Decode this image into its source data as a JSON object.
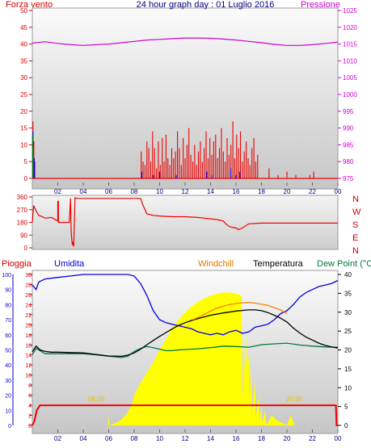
{
  "colors": {
    "panel_top": "#fafafa",
    "panel_bottom": "#c8c8c8",
    "axis_red": "#d40000",
    "axis_magenta": "#cc00cc",
    "axis_navy": "#000080",
    "axis_blue": "#0000cc",
    "wind_red": "#ee0000",
    "wind_blue": "#0000ff",
    "wind_green": "#008000",
    "pressure_line": "#cc00cc",
    "rain_line": "#ee0000",
    "humidity_line": "#0000dd",
    "windchill_line": "#ff8000",
    "temperature_line": "#000000",
    "dewpoint_line": "#007a3d",
    "solar_fill": "#ffff00",
    "windchill_label": "#e07800",
    "dewpoint_label": "#007a3d"
  },
  "chart_data": [
    {
      "type": "bar",
      "title": "24 hour graph day : 01 Luglio 2016",
      "ylabel_left": "Forza vento",
      "ylabel_right": "Pressione",
      "x_tick_labels": [
        "02",
        "04",
        "06",
        "08",
        "10",
        "12",
        "14",
        "16",
        "18",
        "20",
        "22",
        "00"
      ],
      "x_range_hours": [
        0,
        24
      ],
      "y_left_ticks": [
        0,
        5,
        10,
        15,
        20,
        25,
        30,
        35,
        40,
        45,
        50
      ],
      "y_left_range": [
        0,
        50
      ],
      "y_right_ticks": [
        975,
        980,
        985,
        990,
        995,
        1000,
        1005,
        1010,
        1015,
        1020,
        1025
      ],
      "y_right_range": [
        975,
        1025
      ],
      "grid": false,
      "series": [
        {
          "name": "Pressione",
          "kind": "line",
          "axis": "right",
          "x": [
            0,
            1,
            2,
            3,
            4,
            5,
            6,
            7,
            8,
            9,
            10,
            11,
            12,
            13,
            14,
            15,
            16,
            17,
            18,
            19,
            20,
            21,
            22,
            23,
            24
          ],
          "values": [
            1015.3,
            1015.7,
            1015.2,
            1014.8,
            1014.6,
            1014.8,
            1015.0,
            1015.4,
            1015.8,
            1016.2,
            1016.4,
            1016.6,
            1016.8,
            1016.8,
            1016.7,
            1016.5,
            1016.2,
            1015.8,
            1015.4,
            1014.9,
            1014.6,
            1014.6,
            1014.8,
            1015.2,
            1015.6
          ]
        },
        {
          "kind": "bars",
          "axis": "left",
          "x": [
            0.05,
            0.12,
            0.2,
            8.55,
            8.7,
            8.85,
            9.0,
            9.15,
            9.3,
            9.45,
            9.6,
            9.75,
            9.9,
            10.05,
            10.2,
            10.35,
            10.5,
            10.65,
            10.8,
            10.95,
            11.1,
            11.25,
            11.4,
            11.55,
            11.7,
            11.85,
            12.0,
            12.15,
            12.3,
            12.45,
            12.6,
            12.75,
            12.9,
            13.05,
            13.2,
            13.35,
            13.5,
            13.65,
            13.8,
            13.95,
            14.1,
            14.25,
            14.4,
            14.55,
            14.7,
            14.85,
            15.0,
            15.15,
            15.3,
            15.45,
            15.6,
            15.75,
            15.9,
            16.05,
            16.2,
            16.35,
            16.5,
            16.65,
            16.8,
            16.95,
            17.1,
            17.25,
            17.4,
            17.55,
            17.7,
            18.6,
            19.3,
            20.0,
            20.7,
            21.8,
            22.1
          ],
          "values": [
            17,
            11,
            5,
            8,
            5,
            4,
            11,
            9,
            5,
            14,
            9,
            3,
            11,
            4,
            12,
            5,
            13,
            6,
            4,
            9,
            6,
            8,
            14,
            9,
            4,
            12,
            6,
            10,
            15,
            7,
            5,
            10,
            4,
            8,
            11,
            5,
            9,
            14,
            6,
            12,
            7,
            11,
            13,
            6,
            9,
            15,
            8,
            5,
            12,
            7,
            10,
            17,
            6,
            13,
            9,
            14,
            5,
            8,
            11,
            6,
            4,
            9,
            12,
            5,
            7,
            3,
            1,
            2,
            1,
            1,
            2
          ]
        },
        {
          "kind": "bars",
          "axis": "left",
          "x": [
            0.05,
            0.15,
            8.6,
            9.5,
            10.0,
            11.3,
            13.7,
            14.1,
            15.6,
            16.0,
            16.3
          ],
          "values": [
            14,
            6,
            2,
            1,
            2,
            1,
            2,
            1,
            3,
            1,
            2
          ]
        },
        {
          "kind": "bars",
          "axis": "left",
          "x": [
            0.02,
            0.08
          ],
          "values": [
            13,
            9
          ]
        }
      ]
    },
    {
      "type": "line",
      "ylabel_right_letters": [
        "N",
        "W",
        "S",
        "E",
        "N"
      ],
      "y_left_ticks": [
        0,
        90,
        180,
        270,
        360
      ],
      "y_left_range": [
        0,
        360
      ],
      "x_range_hours": [
        0,
        24
      ],
      "grid": false,
      "series": [
        {
          "kind": "line",
          "x": [
            0.0,
            0.1,
            0.25,
            0.5,
            0.8,
            1.0,
            1.5,
            2.0,
            2.0,
            2.05,
            2.05,
            2.3,
            2.9,
            3.0,
            3.05,
            3.1,
            3.15,
            3.2,
            3.25,
            3.35,
            3.5,
            4.0,
            5.0,
            6.0,
            7.0,
            8.0,
            8.5,
            8.7,
            9.0,
            9.5,
            10.0,
            11.0,
            12.0,
            13.0,
            13.5,
            14.0,
            14.5,
            15.0,
            15.2,
            15.5,
            16.0,
            16.2,
            16.5,
            17.0,
            18.0,
            19.0,
            20.0,
            21.0,
            22.0,
            23.0,
            24.0
          ],
          "values": [
            180,
            300,
            270,
            230,
            220,
            210,
            215,
            190,
            330,
            330,
            180,
            180,
            180,
            350,
            120,
            60,
            20,
            40,
            10,
            355,
            350,
            350,
            350,
            350,
            350,
            350,
            350,
            300,
            240,
            230,
            225,
            220,
            220,
            215,
            210,
            205,
            200,
            190,
            170,
            150,
            140,
            130,
            140,
            170,
            175,
            175,
            175,
            175,
            175,
            175,
            175
          ]
        }
      ]
    },
    {
      "type": "line",
      "ylabel_left": "Pioggia",
      "ylabel_left2": "Umidita",
      "legend": [
        "Windchill",
        "Temperatura",
        "Dew Point (°C"
      ],
      "x_tick_labels": [
        "02",
        "04",
        "06",
        "08",
        "10",
        "12",
        "14",
        "16",
        "18",
        "20",
        "22",
        "00"
      ],
      "x_range_hours": [
        0,
        24
      ],
      "y_left_ticks": [
        0,
        2,
        4,
        6,
        8,
        10,
        12,
        14,
        16,
        18,
        20,
        22,
        24,
        26,
        28,
        30
      ],
      "y_left_range": [
        0,
        30
      ],
      "y_humidity_ticks": [
        0,
        10,
        20,
        30,
        40,
        50,
        60,
        70,
        80,
        90,
        100
      ],
      "y_humidity_range": [
        0,
        100
      ],
      "y_right_ticks": [
        0,
        5,
        10,
        15,
        20,
        25,
        30,
        35,
        40
      ],
      "y_right_range": [
        0,
        40
      ],
      "grid": false,
      "annotations": [
        "06:00",
        "20:30"
      ],
      "series": [
        {
          "name": "Umidita",
          "kind": "line",
          "axis": "humidity",
          "x": [
            0.0,
            0.3,
            0.5,
            1.0,
            2.0,
            3.0,
            4.0,
            5.0,
            6.0,
            7.0,
            7.5,
            8.0,
            8.5,
            9.0,
            9.5,
            10.0,
            10.5,
            11.0,
            11.5,
            12.0,
            12.5,
            13.0,
            13.5,
            14.0,
            14.5,
            15.0,
            15.5,
            16.0,
            16.5,
            17.0,
            17.5,
            18.0,
            18.5,
            19.0,
            19.5,
            20.0,
            20.5,
            21.0,
            21.5,
            22.0,
            22.5,
            23.0,
            23.5,
            24.0
          ],
          "values": [
            93,
            90,
            95,
            97,
            98,
            99,
            100,
            100,
            100,
            100,
            100,
            99,
            94,
            86,
            76,
            70,
            68,
            67,
            66,
            65,
            64,
            62,
            61,
            60,
            61,
            60,
            62,
            63,
            61,
            62,
            65,
            66,
            67,
            70,
            74,
            76,
            80,
            85,
            88,
            90,
            92,
            93,
            94,
            96
          ]
        },
        {
          "name": "Windchill",
          "kind": "line",
          "axis": "right",
          "x": [
            12.6,
            13.0,
            13.5,
            14.0,
            14.5,
            15.0,
            15.5,
            16.0,
            16.5,
            17.0,
            17.5,
            18.0,
            18.5,
            19.0,
            19.5,
            20.0
          ],
          "values": [
            28.0,
            28.6,
            29.4,
            30.3,
            31.1,
            31.6,
            32.0,
            32.3,
            32.5,
            32.6,
            32.4,
            32.1,
            31.8,
            31.2,
            30.6,
            29.6
          ]
        },
        {
          "name": "Temperatura",
          "kind": "line",
          "axis": "right",
          "x": [
            0.0,
            0.3,
            0.6,
            1.0,
            1.5,
            2.0,
            3.0,
            4.0,
            5.0,
            6.0,
            7.0,
            7.5,
            8.0,
            8.5,
            9.0,
            9.5,
            10.0,
            10.5,
            11.0,
            11.5,
            12.0,
            12.5,
            13.0,
            14.0,
            15.0,
            16.0,
            17.0,
            17.5,
            18.0,
            18.5,
            19.0,
            19.5,
            20.0,
            20.5,
            21.0,
            21.5,
            22.0,
            22.5,
            23.0,
            23.5,
            24.0
          ],
          "values": [
            19.5,
            21.0,
            20.0,
            19.6,
            19.4,
            19.4,
            19.3,
            19.2,
            18.8,
            18.4,
            18.3,
            18.6,
            19.2,
            20.2,
            21.4,
            22.5,
            23.6,
            24.6,
            25.6,
            26.5,
            27.2,
            27.8,
            28.3,
            29.2,
            29.8,
            30.3,
            30.6,
            30.6,
            30.4,
            29.9,
            29.2,
            28.4,
            27.4,
            25.8,
            24.5,
            23.4,
            22.6,
            21.8,
            21.2,
            20.8,
            20.5
          ]
        },
        {
          "name": "Dew Point (°C",
          "kind": "line",
          "axis": "right",
          "x": [
            0.0,
            0.3,
            1.0,
            2.0,
            3.0,
            4.0,
            5.0,
            6.0,
            7.0,
            7.5,
            8.0,
            8.5,
            9.0,
            9.5,
            10.0,
            10.5,
            11.0,
            11.5,
            12.0,
            13.0,
            14.0,
            15.0,
            16.0,
            17.0,
            18.0,
            19.0,
            20.0,
            21.0,
            22.0,
            23.0,
            24.0
          ],
          "values": [
            18.8,
            20.4,
            19.0,
            19.0,
            19.0,
            19.0,
            18.7,
            18.3,
            18.0,
            18.3,
            19.6,
            20.4,
            20.9,
            20.6,
            20.2,
            19.8,
            19.8,
            20.0,
            20.1,
            20.3,
            20.6,
            21.0,
            20.9,
            20.7,
            21.4,
            21.6,
            21.8,
            21.3,
            21.0,
            20.8,
            20.7
          ]
        },
        {
          "name": "Pioggia",
          "kind": "line",
          "axis": "left",
          "x": [
            0.0,
            0.15,
            0.35,
            0.6,
            0.9,
            23.85,
            23.9,
            24.0
          ],
          "values": [
            0.0,
            0.8,
            3.0,
            4.0,
            4.0,
            4.0,
            0.0,
            0.0
          ]
        },
        {
          "kind": "area",
          "axis": "left",
          "x": [
            0.0,
            5.95,
            6.0,
            6.05,
            6.6,
            7.0,
            7.4,
            7.8,
            8.0,
            8.4,
            9.0,
            9.6,
            10.0,
            10.6,
            11.0,
            11.5,
            12.0,
            12.5,
            13.0,
            13.5,
            14.0,
            14.5,
            15.0,
            15.5,
            16.0,
            16.3,
            16.45,
            16.5,
            16.8,
            16.85,
            17.0,
            17.05,
            17.2,
            17.25,
            17.5,
            17.55,
            17.8,
            17.85,
            18.0,
            18.05,
            18.3,
            18.4,
            18.8,
            19.2,
            19.6,
            20.0,
            20.3,
            20.6,
            24.0
          ],
          "values": [
            0.0,
            0.0,
            2.0,
            0.0,
            0.5,
            1.2,
            2.2,
            4.0,
            6.0,
            8.0,
            10.5,
            13.0,
            15.0,
            17.5,
            19.5,
            21.0,
            22.5,
            23.6,
            24.5,
            25.2,
            25.8,
            26.2,
            26.4,
            26.4,
            26.2,
            25.9,
            25.6,
            5.0,
            18.0,
            12.0,
            14.0,
            4.0,
            12.0,
            2.0,
            9.0,
            1.5,
            6.0,
            1.0,
            4.0,
            0.5,
            3.0,
            0.0,
            2.0,
            1.0,
            0.5,
            0.0,
            2.0,
            0.0,
            0.0
          ]
        }
      ]
    }
  ]
}
